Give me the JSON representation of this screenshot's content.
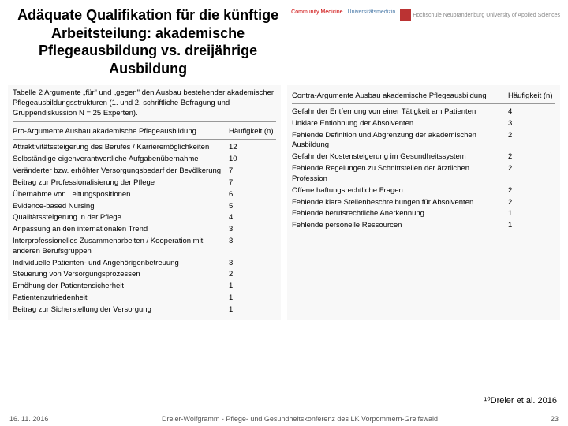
{
  "title": "Adäquate Qualifikation für die künftige Arbeitsteilung: akademische Pflegeausbildung vs. dreijährige Ausbildung",
  "logos": {
    "cm": "Community Medicine",
    "um": "Universitätsmedizin",
    "hs": "Hochschule Neubrandenburg\nUniversity of Applied Sciences"
  },
  "left_table": {
    "caption": "Tabelle 2 Argumente „für\" und „gegen\" den Ausbau bestehender akademischer Pflegeausbildungsstrukturen (1. und 2. schriftliche Befragung und Gruppendiskussion N = 25 Experten).",
    "head_label": "Pro-Argumente Ausbau akademische Pflegeausbildung",
    "head_val": "Häufigkeit (n)",
    "rows": [
      {
        "label": "Attraktivitätssteigerung des Berufes / Karrieremöglichkeiten",
        "val": "12"
      },
      {
        "label": "Selbständige eigenverantwortliche Aufgabenübernahme",
        "val": "10"
      },
      {
        "label": "Veränderter bzw. erhöhter Versorgungsbedarf der Bevölkerung",
        "val": "7"
      },
      {
        "label": "Beitrag zur Professionalisierung der Pflege",
        "val": "7"
      },
      {
        "label": "Übernahme von Leitungspositionen",
        "val": "6"
      },
      {
        "label": "Evidence-based Nursing",
        "val": "5"
      },
      {
        "label": "Qualitätssteigerung in der Pflege",
        "val": "4"
      },
      {
        "label": "Anpassung an den internationalen Trend",
        "val": "3"
      },
      {
        "label": "Interprofessionelles Zusammenarbeiten / Kooperation mit anderen Berufsgruppen",
        "val": "3"
      },
      {
        "label": "Individuelle Patienten- und Angehörigenbetreuung",
        "val": "3"
      },
      {
        "label": "Steuerung von Versorgungsprozessen",
        "val": "2"
      },
      {
        "label": "Erhöhung der Patientensicherheit",
        "val": "1"
      },
      {
        "label": "Patientenzufriedenheit",
        "val": "1"
      },
      {
        "label": "Beitrag zur Sicherstellung der Versorgung",
        "val": "1"
      }
    ]
  },
  "right_table": {
    "head_label": "Contra-Argumente Ausbau akademische Pflegeausbildung",
    "head_val": "Häufigkeit (n)",
    "rows": [
      {
        "label": "Gefahr der Entfernung von einer Tätigkeit am Patienten",
        "val": "4"
      },
      {
        "label": "Unklare Entlohnung der Absolventen",
        "val": "3"
      },
      {
        "label": "Fehlende Definition und Abgrenzung der akademischen Ausbildung",
        "val": "2"
      },
      {
        "label": "Gefahr der Kostensteigerung im Gesundheitssystem",
        "val": "2"
      },
      {
        "label": "Fehlende Regelungen zu Schnittstellen der ärztlichen Profession",
        "val": "2"
      },
      {
        "label": "Offene haftungsrechtliche Fragen",
        "val": "2"
      },
      {
        "label": "Fehlende klare Stellenbeschreibungen für Absolventen",
        "val": "2"
      },
      {
        "label": "Fehlende berufsrechtliche Anerkennung",
        "val": "1"
      },
      {
        "label": "Fehlende personelle Ressourcen",
        "val": "1"
      }
    ]
  },
  "citation": "¹⁰Dreier et al. 2016",
  "footer": {
    "date": "16. 11. 2016",
    "mid": "Dreier-Wolfgramm - Pflege- und Gesundheitskonferenz des LK Vorpommern-Greifswald",
    "page": "23"
  }
}
